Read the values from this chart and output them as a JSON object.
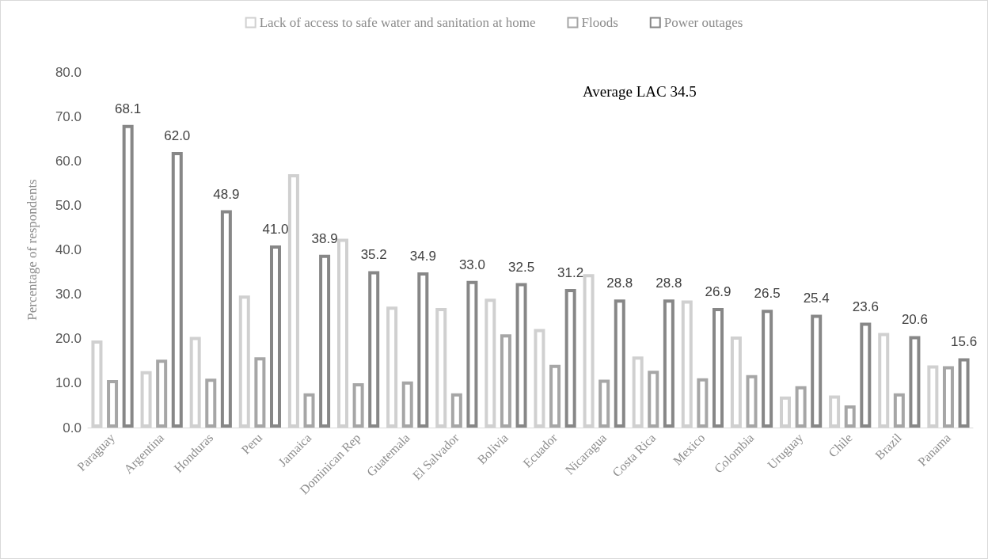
{
  "chart_data": {
    "type": "bar",
    "ylabel": "Percentage of respondents",
    "categories": [
      "Paraguay",
      "Argentina",
      "Honduras",
      "Peru",
      "Jamaica",
      "Dominican Rep",
      "Guatemala",
      "El Salvador",
      "Bolivia",
      "Ecuador",
      "Nicaragua",
      "Costa Rica",
      "Mexico",
      "Colombia",
      "Uruguay",
      "Chile",
      "Brazil",
      "Panama"
    ],
    "series": [
      {
        "name": "Lack of access to safe water and sanitation at home",
        "color": "#d0d0d0",
        "values": [
          19.6,
          12.7,
          20.4,
          29.7,
          57.0,
          42.5,
          27.2,
          26.9,
          29.0,
          22.2,
          34.5,
          16.0,
          28.6,
          20.5,
          7.0,
          7.2,
          21.3,
          14.0
        ]
      },
      {
        "name": "Floods",
        "color": "#a6a6a6",
        "values": [
          10.7,
          15.3,
          11.0,
          15.8,
          7.7,
          10.0,
          10.4,
          7.7,
          21.0,
          14.1,
          10.8,
          12.8,
          11.1,
          11.8,
          9.3,
          5.0,
          7.7,
          13.8
        ]
      },
      {
        "name": "Power outages",
        "color": "#878787",
        "values": [
          68.1,
          62.0,
          48.9,
          41.0,
          38.9,
          35.2,
          34.9,
          33.0,
          32.5,
          31.2,
          28.8,
          28.8,
          26.9,
          26.5,
          25.4,
          23.6,
          20.6,
          15.6
        ],
        "value_labels": [
          "68.1",
          "62.0",
          "48.9",
          "41.0",
          "38.9",
          "35.2",
          "34.9",
          "33.0",
          "32.5",
          "31.2",
          "28.8",
          "28.8",
          "26.9",
          "26.5",
          "25.4",
          "23.6",
          "20.6",
          "15.6"
        ]
      }
    ],
    "ylim": [
      0,
      80
    ],
    "yticks": [
      {
        "value": 0,
        "label": "0.0"
      },
      {
        "value": 10,
        "label": "10.0"
      },
      {
        "value": 20,
        "label": "20.0"
      },
      {
        "value": 30,
        "label": "30.0"
      },
      {
        "value": 40,
        "label": "40.0"
      },
      {
        "value": 50,
        "label": "50.0"
      },
      {
        "value": 60,
        "label": "60.0"
      },
      {
        "value": 70,
        "label": "70.0"
      },
      {
        "value": 80,
        "label": "80.0"
      }
    ],
    "annotations": [
      "Average LAC 34.5"
    ],
    "legend": "top",
    "grid": false
  }
}
